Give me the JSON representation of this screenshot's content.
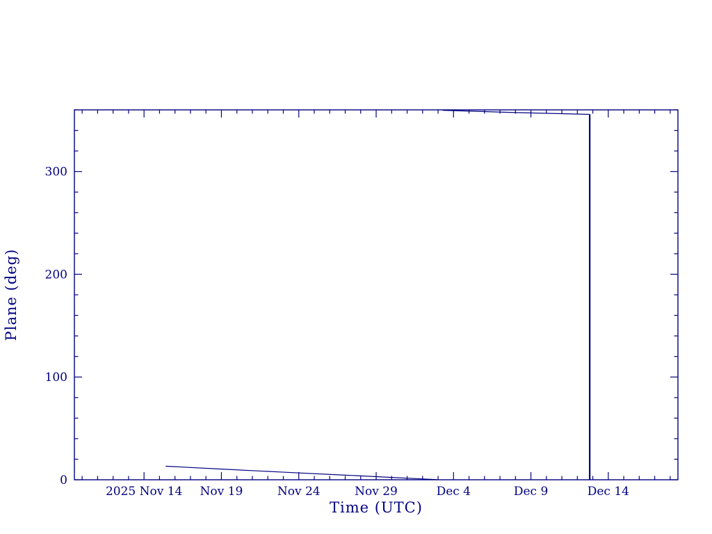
{
  "page": {
    "background": "#ffffff"
  },
  "chart_data": {
    "type": "line",
    "title": "",
    "xlabel": "Time (UTC)",
    "ylabel": "Plane (deg)",
    "color": "#000080",
    "xlim": [
      9.5,
      48.5
    ],
    "ylim": [
      0,
      360
    ],
    "x_unit": "day of 2025 counted from Nov 1 (Nov 14 = 14, Dec 4 = 34)",
    "x_major_ticks": [
      14,
      19,
      24,
      29,
      34,
      39,
      44
    ],
    "x_major_labels": [
      "2025 Nov 14",
      "Nov 19",
      "Nov 24",
      "Nov 29",
      "Dec 4",
      "Dec 9",
      "Dec 14"
    ],
    "x_minor_step": 1,
    "y_major_ticks": [
      0,
      100,
      200,
      300
    ],
    "y_major_labels": [
      "0",
      "100",
      "200",
      "300"
    ],
    "y_minor_step": 20,
    "grid": false,
    "legend": "none",
    "series": [
      {
        "name": "plane-angle-descending",
        "line_width": 1.2,
        "points": [
          [
            15.4,
            13.2
          ],
          [
            19.0,
            10.4
          ],
          [
            23.0,
            7.4
          ],
          [
            27.0,
            4.5
          ],
          [
            30.0,
            2.3
          ],
          [
            32.0,
            0.8
          ],
          [
            32.9,
            0.2
          ]
        ]
      },
      {
        "name": "plane-angle-after-wrap",
        "line_width": 1.2,
        "points": [
          [
            33.3,
            359.6
          ],
          [
            38.0,
            357.4
          ],
          [
            42.8,
            355.6
          ]
        ]
      },
      {
        "name": "vertical-drop",
        "line_width": 2.2,
        "points": [
          [
            42.8,
            355.6
          ],
          [
            42.8,
            0.0
          ]
        ]
      }
    ]
  }
}
